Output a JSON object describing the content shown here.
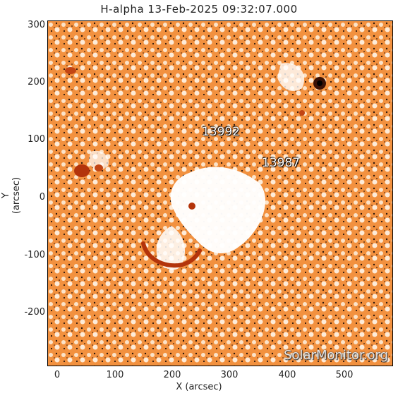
{
  "title": "H-alpha 13-Feb-2025 09:32:07.000",
  "xlabel": "X (arcsec)",
  "ylabel": "Y (arcsec)",
  "x_ticks": [
    "0",
    "100",
    "200",
    "300",
    "400",
    "500"
  ],
  "y_ticks": [
    "300",
    "200",
    "100",
    "0",
    "-100",
    "-200"
  ],
  "regions": [
    "13992",
    "13987"
  ],
  "watermark": "SolarMonitor.org",
  "colors": {
    "background": "#f08a3a",
    "light": "#ffffff",
    "dark": "#b33a0a"
  }
}
